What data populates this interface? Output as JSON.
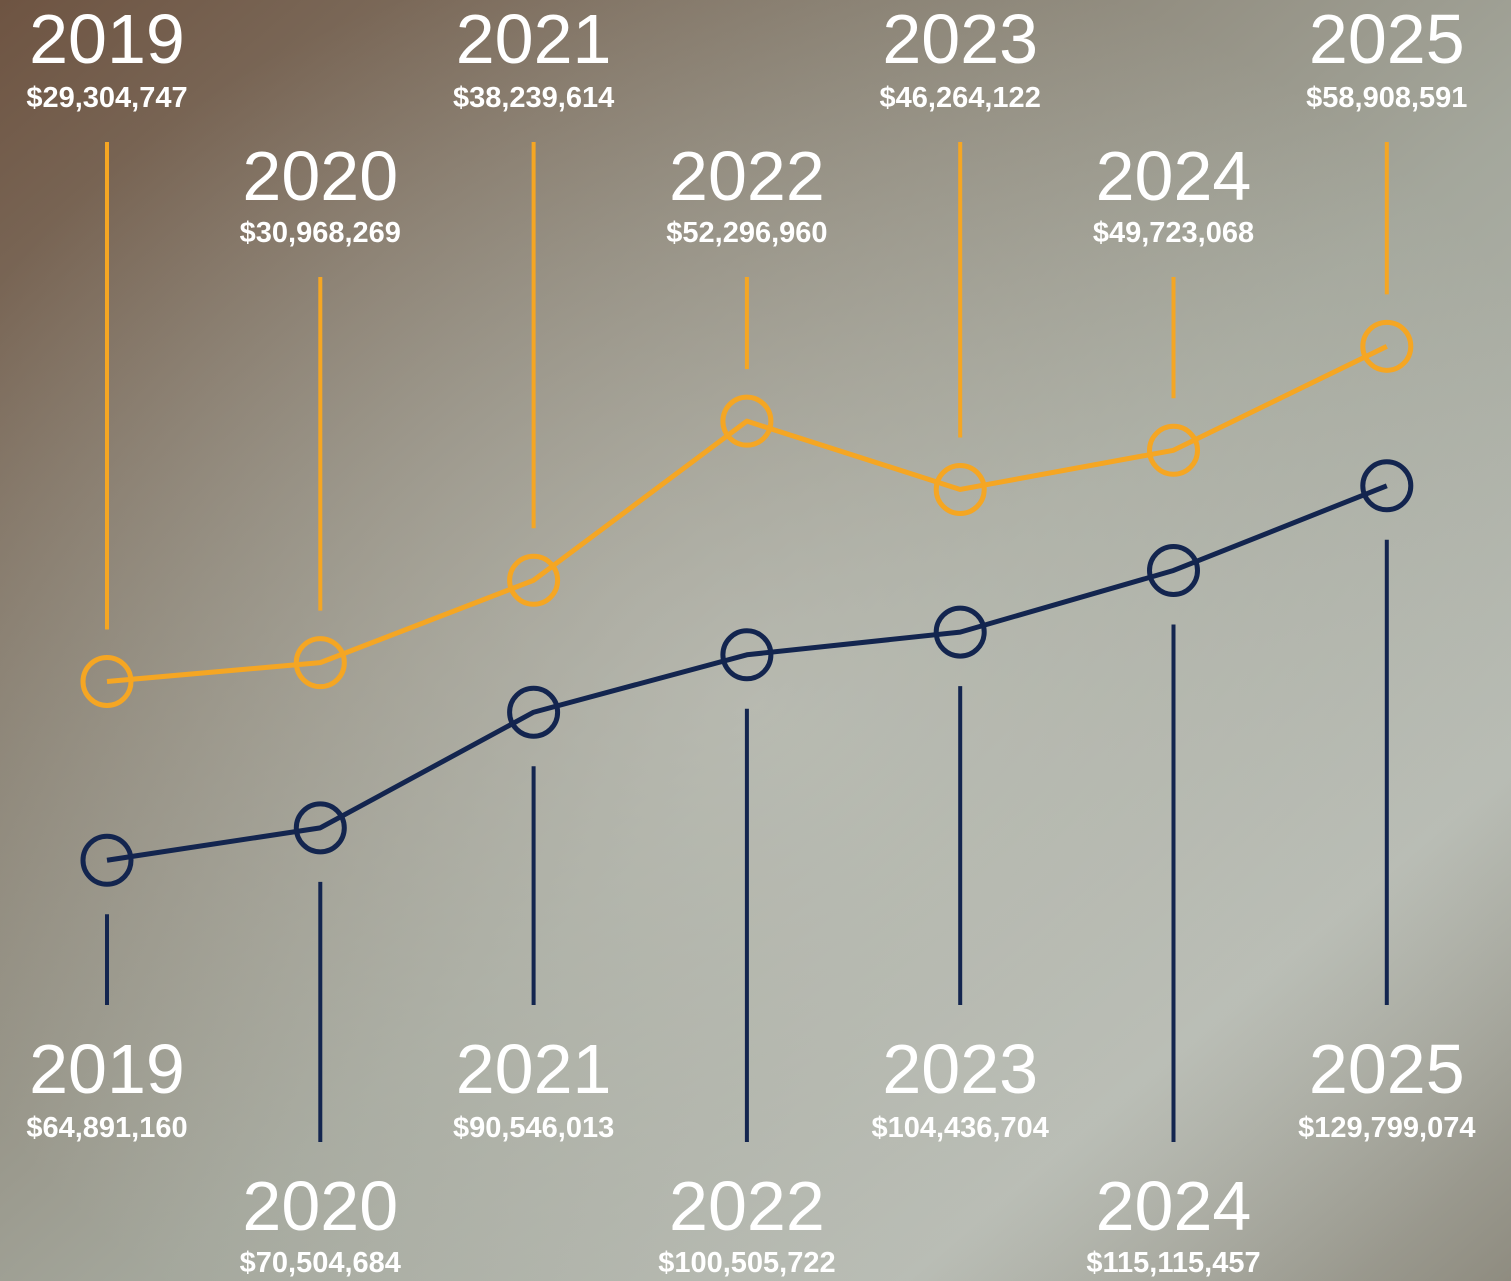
{
  "chart_data": {
    "type": "line",
    "categories": [
      "2019",
      "2020",
      "2021",
      "2022",
      "2023",
      "2024",
      "2025"
    ],
    "series": [
      {
        "color": "#f5a623",
        "values": [
          29304747,
          30968269,
          38239614,
          52296960,
          46264122,
          49723068,
          58908591
        ],
        "value_labels": [
          "$29,304,747",
          "$30,968,269",
          "$38,239,614",
          "$52,296,960",
          "$46,264,122",
          "$49,723,068",
          "$58,908,591"
        ]
      },
      {
        "color": "#13254f",
        "axis": "y2",
        "values": [
          64891160,
          70504684,
          90546013,
          100505722,
          104436704,
          115115457,
          129799074
        ],
        "value_labels": [
          "$64,891,160",
          "$70,504,684",
          "$90,546,013",
          "$100,505,722",
          "$104,436,704",
          "$115,115,457",
          "$129,799,074"
        ]
      }
    ],
    "ylim": [
      10000000,
      63000000
    ],
    "y2lim": [
      58000000,
      162000000
    ]
  }
}
